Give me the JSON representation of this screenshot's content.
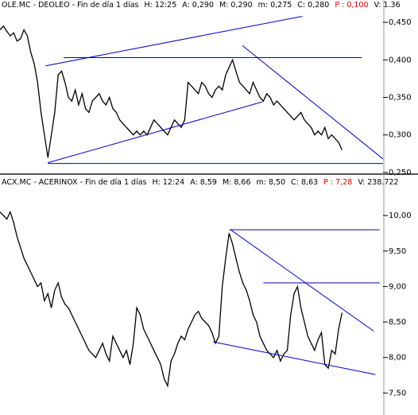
{
  "chart_data": [
    {
      "type": "line",
      "header": [
        {
          "text": "OLE.MC - DEOLEO - Fin de día 1 días",
          "color": "#000000"
        },
        {
          "text": "H: 12:25",
          "color": "#000000"
        },
        {
          "text": "A: 0,290",
          "color": "#000000"
        },
        {
          "text": "M: 0,290",
          "color": "#000000"
        },
        {
          "text": "m: 0,275",
          "color": "#000000"
        },
        {
          "text": "C: 0,280",
          "color": "#000000"
        },
        {
          "text": "P : 0,100",
          "color": "#e00000"
        },
        {
          "text": "V: 1.36",
          "color": "#000000"
        }
      ],
      "x": [
        0,
        1,
        2,
        3,
        4,
        5,
        6,
        7,
        8,
        9,
        10,
        11,
        12,
        13,
        14,
        15,
        16,
        17,
        18,
        19,
        20,
        21,
        22,
        23,
        24,
        25,
        26,
        27,
        28,
        29,
        30,
        31,
        32,
        33,
        34,
        35,
        36,
        37,
        38,
        39,
        40,
        41,
        42,
        43,
        44,
        45,
        46,
        47,
        48,
        49,
        50,
        51,
        52,
        53,
        54,
        55,
        56,
        57,
        58,
        59,
        60,
        61,
        62,
        63,
        64,
        65,
        66,
        67,
        68,
        69,
        70,
        71,
        72,
        73,
        74,
        75,
        76,
        77,
        78,
        79,
        80,
        81,
        82,
        83,
        84,
        85,
        86,
        87,
        88,
        89,
        90,
        91,
        92,
        93,
        94,
        95,
        96,
        97,
        98,
        99,
        100
      ],
      "series": [
        {
          "color": "#000000",
          "values": [
            0.44,
            0.445,
            0.438,
            0.432,
            0.436,
            0.425,
            0.428,
            0.44,
            0.432,
            0.41,
            0.395,
            0.37,
            0.33,
            0.3,
            0.27,
            0.3,
            0.33,
            0.38,
            0.385,
            0.37,
            0.35,
            0.345,
            0.36,
            0.34,
            0.355,
            0.335,
            0.33,
            0.345,
            0.35,
            0.355,
            0.345,
            0.34,
            0.35,
            0.335,
            0.33,
            0.32,
            0.315,
            0.31,
            0.305,
            0.3,
            0.305,
            0.3,
            0.305,
            0.3,
            0.31,
            0.32,
            0.315,
            0.31,
            0.305,
            0.3,
            0.31,
            0.32,
            0.315,
            0.31,
            0.32,
            0.37,
            0.365,
            0.36,
            0.355,
            0.37,
            0.365,
            0.355,
            0.35,
            0.36,
            0.365,
            0.36,
            0.38,
            0.39,
            0.4,
            0.385,
            0.37,
            0.365,
            0.36,
            0.355,
            0.37,
            0.36,
            0.35,
            0.345,
            0.355,
            0.35,
            0.34,
            0.345,
            0.34,
            0.335,
            0.33,
            0.325,
            0.32,
            0.325,
            0.33,
            0.32,
            0.315,
            0.31,
            0.3,
            0.305,
            0.3,
            0.31,
            0.295,
            0.3,
            0.295,
            0.29,
            0.28
          ]
        }
      ],
      "trendlines": [
        {
          "color": "#0000cc",
          "x": [
            13.3,
            88.4
          ],
          "y": [
            0.392,
            0.458
          ]
        },
        {
          "color": "#0000cc",
          "x": [
            18.6,
            105.8
          ],
          "y": [
            0.403,
            0.403
          ]
        },
        {
          "color": "#0000cc",
          "x": [
            14,
            76.7
          ],
          "y": [
            0.263,
            0.344
          ]
        },
        {
          "color": "#0000cc",
          "x": [
            70.9,
            112
          ],
          "y": [
            0.419,
            0.268
          ]
        },
        {
          "color": "#0000cc",
          "x": [
            14,
            112
          ],
          "y": [
            0.262,
            0.262
          ]
        }
      ],
      "xlim": [
        0,
        112
      ],
      "ylim": [
        0.251,
        0.467
      ],
      "yticks": [
        {
          "value": 0.45,
          "label": "0,450"
        },
        {
          "value": 0.4,
          "label": "0,400"
        },
        {
          "value": 0.35,
          "label": "0,350"
        },
        {
          "value": 0.3,
          "label": "0,300"
        },
        {
          "value": 0.25,
          "label": "0,250"
        }
      ]
    },
    {
      "type": "line",
      "header": [
        {
          "text": "ACX.MC - ACERINOX - Fin de día 1 días",
          "color": "#000000"
        },
        {
          "text": "H: 12:24",
          "color": "#000000"
        },
        {
          "text": "A: 8,59",
          "color": "#000000"
        },
        {
          "text": "M: 8,66",
          "color": "#000000"
        },
        {
          "text": "m: 8,50",
          "color": "#000000"
        },
        {
          "text": "C: 8,63",
          "color": "#000000"
        },
        {
          "text": "P : 7,28",
          "color": "#e00000"
        },
        {
          "text": "V: 238.722",
          "color": "#000000"
        }
      ],
      "x": [
        0,
        1,
        2,
        3,
        4,
        5,
        6,
        7,
        8,
        9,
        10,
        11,
        12,
        13,
        14,
        15,
        16,
        17,
        18,
        19,
        20,
        21,
        22,
        23,
        24,
        25,
        26,
        27,
        28,
        29,
        30,
        31,
        32,
        33,
        34,
        35,
        36,
        37,
        38,
        39,
        40,
        41,
        42,
        43,
        44,
        45,
        46,
        47,
        48,
        49,
        50,
        51,
        52,
        53,
        54,
        55,
        56,
        57,
        58,
        59,
        60,
        61,
        62,
        63,
        64,
        65,
        66,
        67,
        68,
        69,
        70,
        71,
        72,
        73,
        74,
        75,
        76,
        77,
        78,
        79,
        80,
        81,
        82,
        83,
        84,
        85,
        86,
        87,
        88,
        89,
        90,
        91,
        92,
        93,
        94,
        95,
        96,
        97,
        98,
        99,
        100
      ],
      "series": [
        {
          "color": "#000000",
          "values": [
            10.05,
            10.0,
            9.95,
            10.05,
            9.9,
            9.7,
            9.55,
            9.4,
            9.3,
            9.2,
            9.1,
            9.0,
            9.05,
            8.8,
            8.9,
            8.7,
            8.95,
            9.05,
            8.85,
            8.75,
            8.7,
            8.6,
            8.5,
            8.4,
            8.3,
            8.2,
            8.1,
            8.05,
            8.0,
            8.1,
            8.2,
            8.05,
            7.95,
            8.3,
            8.2,
            8.1,
            8.0,
            8.1,
            7.9,
            8.2,
            8.7,
            8.6,
            8.4,
            8.3,
            8.2,
            8.1,
            8.0,
            7.9,
            7.7,
            7.6,
            7.95,
            8.05,
            8.2,
            8.3,
            8.25,
            8.4,
            8.5,
            8.6,
            8.65,
            8.55,
            8.5,
            8.45,
            8.35,
            8.2,
            8.3,
            9.0,
            9.4,
            9.75,
            9.6,
            9.4,
            9.2,
            9.05,
            8.95,
            8.8,
            8.6,
            8.5,
            8.3,
            8.2,
            8.1,
            8.05,
            8.0,
            8.1,
            7.95,
            8.05,
            8.1,
            8.6,
            8.9,
            9.0,
            8.7,
            8.5,
            8.3,
            8.2,
            8.1,
            8.25,
            8.35,
            7.9,
            7.85,
            8.1,
            8.05,
            8.4,
            8.63
          ]
        }
      ],
      "trendlines": [
        {
          "color": "#0000cc",
          "x": [
            67.4,
            109.3
          ],
          "y": [
            9.8,
            8.37
          ]
        },
        {
          "color": "#0000cc",
          "x": [
            67,
            111
          ],
          "y": [
            9.8,
            9.8
          ]
        },
        {
          "color": "#0000cc",
          "x": [
            77,
            111
          ],
          "y": [
            9.05,
            9.05
          ]
        },
        {
          "color": "#0000cc",
          "x": [
            62.3,
            109.8
          ],
          "y": [
            8.22,
            7.76
          ]
        }
      ],
      "xlim": [
        0,
        112
      ],
      "ylim": [
        7.19,
        10.55
      ],
      "yticks": [
        {
          "value": 10,
          "label": "10,00"
        },
        {
          "value": 9.5,
          "label": "9,50"
        },
        {
          "value": 9,
          "label": "9,00"
        },
        {
          "value": 8.5,
          "label": "8,50"
        },
        {
          "value": 8,
          "label": "8,00"
        },
        {
          "value": 7.5,
          "label": "7,50"
        }
      ]
    }
  ]
}
